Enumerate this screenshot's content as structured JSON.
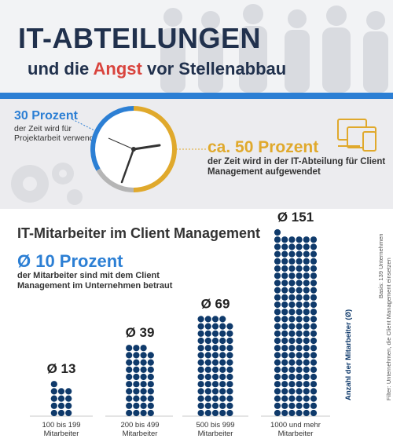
{
  "header": {
    "title_line1": "IT-ABTEILUNGEN",
    "title_pre": "und die ",
    "title_highlight": "Angst",
    "title_post": " vor Stellenabbau"
  },
  "clock": {
    "left_percent": "30 Prozent",
    "left_text": "der Zeit wird für Projektarbeit verwendet",
    "right_percent": "ca. 50 Prozent",
    "right_text": "der Zeit wird in der IT-Abteilung für Client Management aufgewendet",
    "colors": {
      "blue": "#2c7fd4",
      "gold": "#e0a92c",
      "gray": "#b5b5b5"
    }
  },
  "section": {
    "title": "IT-Mitarbeiter im Client Management",
    "avg_percent": "Ø 10 Prozent",
    "avg_text": "der Mitarbeiter sind mit dem Client Management im Unternehmen betraut"
  },
  "notes": {
    "basis": "Basis: 139 Unternehmen",
    "filter": "Filter: Unternehmen, die Client Management einsetzen"
  },
  "chart_data": {
    "type": "bar",
    "categories": [
      "100 bis 199 Mitarbeiter",
      "200 bis 499 Mitarbeiter",
      "500 bis 999 Mitarbeiter",
      "1000 und mehr Mitarbeiter"
    ],
    "values": [
      13,
      39,
      69,
      151
    ],
    "value_labels": [
      "Ø 13",
      "Ø 39",
      "Ø 69",
      "Ø 151"
    ],
    "ylabel": "Anzahl der Mitarbeiter (Ø)",
    "dot_color": "#0f3a6b"
  }
}
